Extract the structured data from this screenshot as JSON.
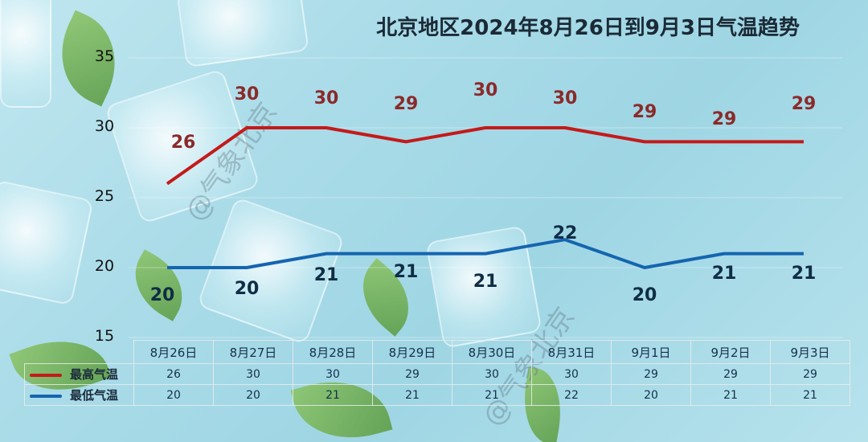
{
  "title": "北京地区2024年8月26日到9月3日气温趋势",
  "watermark": "@气象北京",
  "y_axis": {
    "ticks": [
      "35",
      "30",
      "25",
      "20",
      "15"
    ]
  },
  "legend": {
    "high_label": "最高气温",
    "low_label": "最低气温",
    "high_color": "#c41a1a",
    "low_color": "#1565b0"
  },
  "table": {
    "dates": [
      "8月26日",
      "8月27日",
      "8月28日",
      "8月29日",
      "8月30日",
      "8月31日",
      "9月1日",
      "9月2日",
      "9月3日"
    ],
    "high": [
      "26",
      "30",
      "30",
      "29",
      "30",
      "30",
      "29",
      "29",
      "29"
    ],
    "low": [
      "20",
      "20",
      "21",
      "21",
      "21",
      "22",
      "20",
      "21",
      "21"
    ]
  },
  "chart_data": {
    "type": "line",
    "title": "北京地区2024年8月26日到9月3日气温趋势",
    "xlabel": "",
    "ylabel": "",
    "ylim": [
      15,
      35
    ],
    "yticks": [
      15,
      20,
      25,
      30,
      35
    ],
    "grid": true,
    "legend_position": "bottom-left (in data table)",
    "categories": [
      "8月26日",
      "8月27日",
      "8月28日",
      "8月29日",
      "8月30日",
      "8月31日",
      "9月1日",
      "9月2日",
      "9月3日"
    ],
    "series": [
      {
        "name": "最高气温",
        "color": "#c41a1a",
        "values": [
          26,
          30,
          30,
          29,
          30,
          30,
          29,
          29,
          29
        ]
      },
      {
        "name": "最低气温",
        "color": "#1565b0",
        "values": [
          20,
          20,
          21,
          21,
          21,
          22,
          20,
          21,
          21
        ]
      }
    ]
  }
}
